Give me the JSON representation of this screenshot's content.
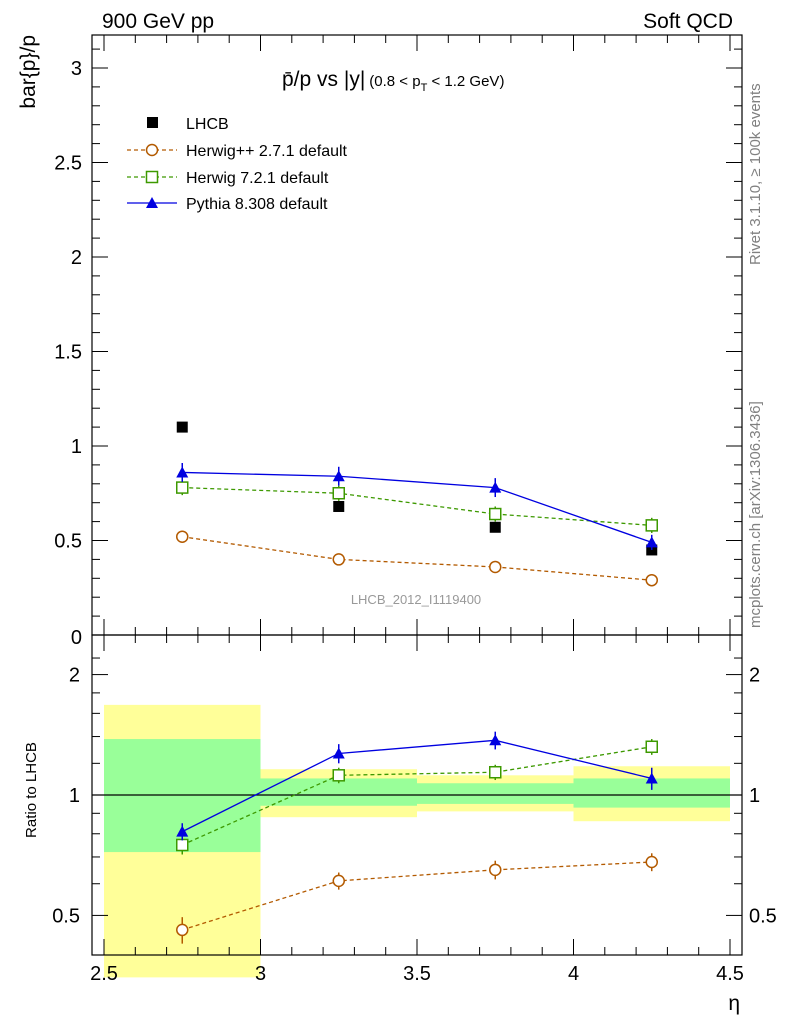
{
  "header": {
    "left": "900 GeV pp",
    "right": "Soft QCD"
  },
  "side_labels": {
    "rivet": "Rivet 3.1.10, ≥ 100k events",
    "mcplots": "mcplots.cern.ch [arXiv:1306.3436]"
  },
  "colors": {
    "data": "#000000",
    "herwigpp": "#b35a00",
    "herwig7": "#3d9900",
    "pythia": "#0000e0",
    "band_inner": "#99ff99",
    "band_outer": "#ffff99"
  },
  "chart_data": [
    {
      "type": "line",
      "title_parts": {
        "main": "p̄/p vs |y|",
        "cut_pre": "(0.8 < p",
        "cut_sub": "T",
        "cut_post": " < 1.2 GeV)"
      },
      "ylabel": "bar{p}/p",
      "xlim": [
        2.5,
        4.5
      ],
      "ylim": [
        0,
        3.2
      ],
      "y_ticks": [
        0,
        0.5,
        1,
        1.5,
        2,
        2.5,
        3
      ],
      "y_tick_labels": [
        "0",
        "0.5",
        "1",
        "1.5",
        "2",
        "2.5",
        "3"
      ],
      "watermark": "LHCB_2012_I1119400",
      "legend_position": "top-left",
      "x": [
        2.75,
        3.25,
        3.75,
        4.25
      ],
      "series": [
        {
          "key": "data",
          "name": "LHCB",
          "values": [
            1.1,
            0.68,
            0.57,
            0.45
          ],
          "errors": [
            0,
            0,
            0,
            0
          ]
        },
        {
          "key": "herwigpp",
          "name": "Herwig++ 2.7.1 default",
          "values": [
            0.52,
            0.4,
            0.36,
            0.29
          ],
          "errors": [
            0.03,
            0.015,
            0.015,
            0.015
          ]
        },
        {
          "key": "herwig7",
          "name": "Herwig 7.2.1 default",
          "values": [
            0.78,
            0.75,
            0.64,
            0.58
          ],
          "errors": [
            0.04,
            0.04,
            0.04,
            0.04
          ]
        },
        {
          "key": "pythia",
          "name": "Pythia 8.308 default",
          "values": [
            0.86,
            0.84,
            0.78,
            0.49
          ],
          "errors": [
            0.05,
            0.05,
            0.05,
            0.04
          ]
        }
      ]
    },
    {
      "type": "line",
      "ylabel": "Ratio to LHCB",
      "xlabel": "η",
      "xlim": [
        2.5,
        4.5
      ],
      "ylim": [
        0.4,
        2.3
      ],
      "log_y": true,
      "y_ticks": [
        0.5,
        1,
        2
      ],
      "y_tick_labels": [
        "0.5",
        "1",
        "2"
      ],
      "x_ticks": [
        2.5,
        3,
        3.5,
        4,
        4.5
      ],
      "x_tick_labels": [
        "2.5",
        "3",
        "3.5",
        "4",
        "4.5"
      ],
      "x": [
        2.75,
        3.25,
        3.75,
        4.25
      ],
      "bands": {
        "edges": [
          2.5,
          3.0,
          3.5,
          4.0,
          4.5
        ],
        "inner": [
          [
            0.72,
            1.38
          ],
          [
            0.94,
            1.1
          ],
          [
            0.95,
            1.07
          ],
          [
            0.93,
            1.1
          ]
        ],
        "outer": [
          [
            0.35,
            1.68
          ],
          [
            0.88,
            1.16
          ],
          [
            0.91,
            1.12
          ],
          [
            0.86,
            1.18
          ]
        ]
      },
      "series": [
        {
          "key": "herwigpp",
          "values": [
            0.46,
            0.61,
            0.65,
            0.68
          ],
          "errors": [
            0.035,
            0.03,
            0.035,
            0.035
          ]
        },
        {
          "key": "herwig7",
          "values": [
            0.75,
            1.12,
            1.14,
            1.32
          ],
          "errors": [
            0.04,
            0.05,
            0.05,
            0.06
          ]
        },
        {
          "key": "pythia",
          "values": [
            0.81,
            1.27,
            1.37,
            1.1
          ],
          "errors": [
            0.04,
            0.07,
            0.07,
            0.07
          ]
        }
      ]
    }
  ]
}
